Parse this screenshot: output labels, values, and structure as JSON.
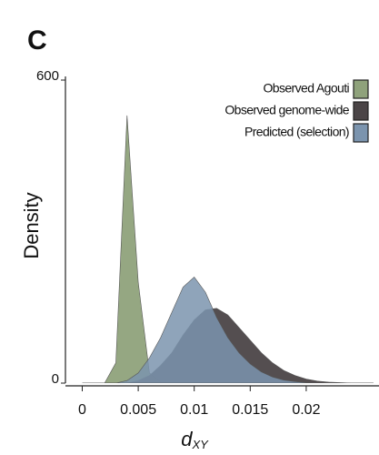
{
  "chart_data": {
    "type": "area",
    "panel_label": "C",
    "ylabel": "Density",
    "xlabel": {
      "text": "d",
      "subscript": "XY"
    },
    "x": [
      0,
      0.001,
      0.002,
      0.003,
      0.004,
      0.005,
      0.006,
      0.007,
      0.008,
      0.009,
      0.01,
      0.011,
      0.012,
      0.013,
      0.014,
      0.015,
      0.016,
      0.017,
      0.018,
      0.019,
      0.02,
      0.021,
      0.022,
      0.023,
      0.024,
      0.025,
      0.026
    ],
    "series": [
      {
        "name": "Observed Agouti",
        "color": "#8fa27b",
        "values": [
          0,
          0,
          0,
          40,
          530,
          200,
          20,
          2,
          0,
          0,
          0,
          0,
          0,
          0,
          0,
          0,
          0,
          0,
          0,
          0,
          0,
          0,
          0,
          0,
          0,
          0,
          0
        ]
      },
      {
        "name": "Observed genome-wide",
        "color": "#4b4547",
        "values": [
          0,
          0,
          0,
          0,
          0,
          5,
          15,
          35,
          60,
          95,
          125,
          145,
          148,
          135,
          110,
          85,
          60,
          40,
          25,
          15,
          8,
          4,
          2,
          1,
          0,
          0,
          0
        ]
      },
      {
        "name": "Predicted (selection)",
        "color": "#7b94ae",
        "values": [
          0,
          0,
          0,
          0,
          5,
          20,
          50,
          90,
          140,
          190,
          210,
          180,
          130,
          90,
          60,
          38,
          22,
          12,
          6,
          3,
          1,
          0,
          0,
          0,
          0,
          0,
          0
        ]
      }
    ],
    "xlim": [
      -0.0015,
      0.0265
    ],
    "ylim": [
      0,
      600
    ],
    "xticks": [
      0,
      0.005,
      0.01,
      0.015,
      0.02
    ],
    "yticks": [
      0,
      600
    ],
    "legend": "top-right"
  }
}
